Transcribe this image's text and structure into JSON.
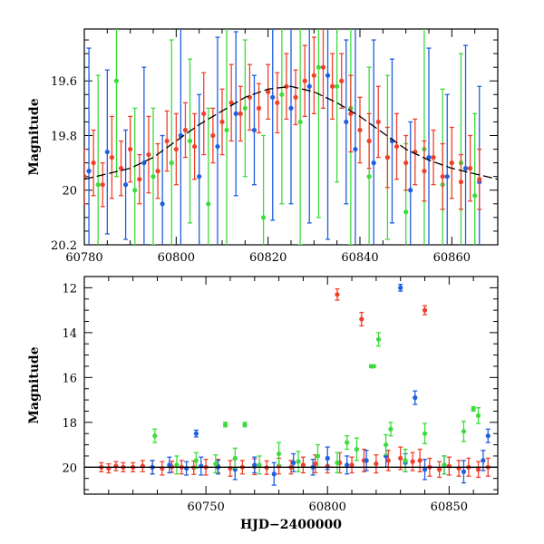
{
  "colors": {
    "blue": "#1f5fe0",
    "green": "#3cdc3c",
    "red": "#f0402a",
    "model": "#000000"
  },
  "chart_data": [
    {
      "type": "scatter",
      "panel": "top",
      "title": "",
      "xlabel": "",
      "ylabel": "Magnitude",
      "xlim": [
        60780,
        60870
      ],
      "ylim": [
        20.2,
        19.41
      ],
      "y_inverted": true,
      "xticks": [
        60780,
        60800,
        60820,
        60840,
        60860
      ],
      "yticks": [
        19.6,
        19.8,
        20,
        20.2
      ],
      "xtick_labels": [
        "60780",
        "60800",
        "60820",
        "60840",
        "60860"
      ],
      "ytick_labels": [
        "19.6",
        "19.8",
        "20",
        "20.2"
      ],
      "model_curve": {
        "color": "model",
        "x": [
          60780,
          60785,
          60790,
          60795,
          60800,
          60805,
          60810,
          60815,
          60820,
          60825,
          60830,
          60835,
          60840,
          60845,
          60850,
          60855,
          60860,
          60865,
          60870
        ],
        "y": [
          19.96,
          19.94,
          19.92,
          19.88,
          19.82,
          19.76,
          19.71,
          19.66,
          19.63,
          19.62,
          19.64,
          19.68,
          19.73,
          19.79,
          19.85,
          19.89,
          19.92,
          19.94,
          19.96
        ]
      },
      "series": [
        {
          "color": "blue",
          "x": [
            60781,
            60785,
            60789,
            60793,
            60797,
            60801,
            60805,
            60809,
            60813,
            60817,
            60821,
            60825,
            60829,
            60833,
            60837,
            60839,
            60843,
            60847,
            60851,
            60855,
            60859,
            60863,
            60866
          ],
          "y": [
            19.93,
            19.86,
            19.98,
            19.9,
            20.05,
            19.8,
            19.95,
            19.84,
            19.72,
            19.78,
            19.66,
            19.7,
            19.62,
            19.58,
            19.75,
            19.85,
            19.9,
            19.82,
            20.0,
            19.88,
            19.95,
            19.92,
            19.97
          ],
          "err": [
            0.45,
            0.3,
            0.2,
            0.35,
            0.25,
            0.5,
            0.3,
            0.4,
            0.3,
            0.2,
            0.45,
            0.35,
            0.5,
            0.6,
            0.3,
            0.55,
            0.45,
            0.3,
            0.25,
            0.4,
            0.3,
            0.45,
            0.35
          ]
        },
        {
          "color": "green",
          "x": [
            60783,
            60787,
            60791,
            60795,
            60799,
            60803,
            60807,
            60811,
            60815,
            60819,
            60823,
            60827,
            60831,
            60835,
            60838,
            60842,
            60846,
            60850,
            60854,
            60858,
            60862,
            60865
          ],
          "y": [
            19.98,
            19.6,
            20.0,
            19.95,
            19.9,
            19.82,
            20.05,
            19.78,
            19.7,
            20.1,
            19.65,
            19.75,
            19.55,
            19.62,
            19.7,
            19.95,
            19.88,
            20.08,
            19.85,
            19.98,
            19.9,
            20.02
          ],
          "err": [
            0.4,
            0.35,
            0.3,
            0.25,
            0.45,
            0.3,
            0.35,
            0.5,
            0.25,
            0.3,
            0.4,
            0.45,
            0.55,
            0.35,
            0.5,
            0.4,
            0.3,
            0.25,
            0.45,
            0.35,
            0.4,
            0.3
          ]
        },
        {
          "color": "red",
          "x": [
            60780,
            60782,
            60784,
            60786,
            60788,
            60790,
            60792,
            60794,
            60796,
            60798,
            60800,
            60802,
            60804,
            60806,
            60808,
            60810,
            60812,
            60814,
            60816,
            60818,
            60820,
            60822,
            60824,
            60826,
            60828,
            60830,
            60832,
            60834,
            60836,
            60838,
            60840,
            60842,
            60844,
            60846,
            60848,
            60850,
            60852,
            60854,
            60856,
            60858,
            60860,
            60862,
            60864,
            60866
          ],
          "y": [
            19.95,
            19.9,
            19.98,
            19.88,
            19.92,
            19.85,
            19.96,
            19.87,
            19.93,
            19.82,
            19.85,
            19.78,
            19.84,
            19.72,
            19.8,
            19.75,
            19.68,
            19.72,
            19.66,
            19.7,
            19.64,
            19.68,
            19.62,
            19.66,
            19.6,
            19.58,
            19.55,
            19.62,
            19.6,
            19.72,
            19.78,
            19.82,
            19.75,
            19.88,
            19.84,
            19.9,
            19.86,
            19.93,
            19.88,
            19.95,
            19.9,
            19.97,
            19.92,
            19.96
          ],
          "err": [
            0.1,
            0.12,
            0.08,
            0.15,
            0.1,
            0.12,
            0.09,
            0.14,
            0.1,
            0.11,
            0.13,
            0.1,
            0.12,
            0.15,
            0.1,
            0.12,
            0.14,
            0.1,
            0.12,
            0.09,
            0.1,
            0.11,
            0.12,
            0.1,
            0.13,
            0.14,
            0.15,
            0.12,
            0.1,
            0.14,
            0.12,
            0.1,
            0.13,
            0.11,
            0.12,
            0.1,
            0.12,
            0.11,
            0.1,
            0.12,
            0.13,
            0.1,
            0.12,
            0.11
          ]
        }
      ]
    },
    {
      "type": "scatter",
      "panel": "bottom",
      "title": "",
      "xlabel": "HJD−2400000",
      "ylabel": "Magnitude",
      "xlim": [
        60700,
        60870
      ],
      "ylim": [
        21.2,
        11.5
      ],
      "y_inverted": true,
      "xticks": [
        60750,
        60800,
        60850
      ],
      "yticks": [
        12,
        14,
        16,
        18,
        20
      ],
      "xtick_labels": [
        "60750",
        "60800",
        "60850"
      ],
      "ytick_labels": [
        "12",
        "14",
        "16",
        "18",
        "20"
      ],
      "model_curve": {
        "color": "model",
        "x": [
          60700,
          60870
        ],
        "y": [
          20.0,
          20.0
        ]
      },
      "series": [
        {
          "color": "red",
          "x": [
            60707,
            60710,
            60713,
            60716,
            60720,
            60724,
            60728,
            60732,
            60736,
            60740,
            60745,
            60750,
            60755,
            60760,
            60765,
            60770,
            60775,
            60780,
            60785,
            60790,
            60795,
            60800,
            60805,
            60810,
            60815,
            60820,
            60825,
            60830,
            60835,
            60838,
            60842,
            60846,
            60850,
            60854,
            60858,
            60862,
            60866,
            60804,
            60814,
            60840
          ],
          "y": [
            20.0,
            20.05,
            19.95,
            20.0,
            20.0,
            19.95,
            20.0,
            20.05,
            19.98,
            20.0,
            20.02,
            20.0,
            19.95,
            20.05,
            20.0,
            19.98,
            20.02,
            19.95,
            20.0,
            19.9,
            19.85,
            19.95,
            19.8,
            19.9,
            19.7,
            19.85,
            19.7,
            19.6,
            19.75,
            19.7,
            20.0,
            20.1,
            19.95,
            20.05,
            20.0,
            20.1,
            20.0,
            12.3,
            13.4,
            13.0
          ],
          "err": [
            0.2,
            0.2,
            0.2,
            0.2,
            0.2,
            0.25,
            0.3,
            0.3,
            0.25,
            0.3,
            0.3,
            0.35,
            0.3,
            0.35,
            0.3,
            0.35,
            0.3,
            0.35,
            0.3,
            0.35,
            0.4,
            0.3,
            0.45,
            0.35,
            0.5,
            0.4,
            0.45,
            0.5,
            0.4,
            0.5,
            0.4,
            0.35,
            0.4,
            0.35,
            0.4,
            0.35,
            0.4,
            0.25,
            0.3,
            0.2
          ]
        },
        {
          "color": "blue",
          "x": [
            60728,
            60735,
            60742,
            60748,
            60755,
            60762,
            60770,
            60778,
            60786,
            60794,
            60800,
            60808,
            60816,
            60824,
            60832,
            60840,
            60848,
            60856,
            60864,
            60746,
            60830,
            60836,
            60866
          ],
          "y": [
            20.0,
            19.9,
            20.05,
            19.95,
            20.0,
            20.1,
            19.9,
            20.3,
            19.8,
            20.0,
            19.6,
            19.9,
            19.7,
            19.5,
            19.8,
            20.1,
            19.9,
            20.2,
            19.7,
            18.5,
            12.0,
            16.9,
            18.6
          ],
          "err": [
            0.3,
            0.35,
            0.3,
            0.4,
            0.3,
            0.45,
            0.35,
            0.5,
            0.4,
            0.35,
            0.5,
            0.4,
            0.45,
            0.5,
            0.4,
            0.45,
            0.4,
            0.5,
            0.45,
            0.15,
            0.15,
            0.3,
            0.3
          ]
        },
        {
          "color": "green",
          "x": [
            60729,
            60738,
            60746,
            60754,
            60762,
            60766,
            60772,
            60780,
            60788,
            60796,
            60804,
            60812,
            60818,
            60824,
            60832,
            60840,
            60848,
            60856,
            60862,
            60860,
            60819,
            60821,
            60808,
            60758,
            60826
          ],
          "y": [
            18.6,
            19.9,
            19.7,
            19.85,
            19.6,
            18.1,
            19.9,
            19.4,
            19.75,
            19.5,
            19.8,
            19.2,
            15.5,
            19.0,
            19.7,
            18.5,
            19.9,
            18.4,
            17.7,
            17.4,
            15.5,
            14.3,
            18.9,
            18.1,
            18.3
          ],
          "err": [
            0.3,
            0.4,
            0.35,
            0.4,
            0.45,
            0.1,
            0.4,
            0.5,
            0.45,
            0.5,
            0.45,
            0.5,
            0.05,
            0.45,
            0.5,
            0.45,
            0.4,
            0.45,
            0.35,
            0.1,
            0.05,
            0.3,
            0.3,
            0.1,
            0.3
          ]
        }
      ]
    }
  ]
}
